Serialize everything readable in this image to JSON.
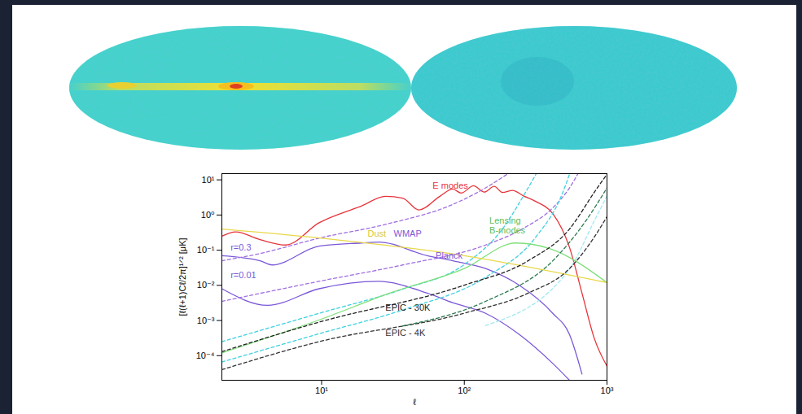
{
  "chart_data": {
    "type": "line",
    "log": true,
    "grid": false,
    "x_label": "ℓ",
    "y_label": "[ℓ(ℓ+1)Cℓ/2π]¹ᐟ² [μK]",
    "xlim": [
      2,
      1000
    ],
    "ylim": [
      2e-05,
      15
    ],
    "xticks": [
      {
        "value": 10,
        "label": "10¹"
      },
      {
        "value": 100,
        "label": "10²"
      },
      {
        "value": 1000,
        "label": "10³"
      }
    ],
    "yticks": [
      {
        "value": 10,
        "label": "10¹"
      },
      {
        "value": 1,
        "label": "10⁰"
      },
      {
        "value": 0.1,
        "label": "10⁻¹"
      },
      {
        "value": 0.01,
        "label": "10⁻²"
      },
      {
        "value": 0.001,
        "label": "10⁻³"
      },
      {
        "value": 0.0001,
        "label": "10⁻⁴"
      }
    ],
    "series": [
      {
        "color": "#e8333a",
        "line_style": "solid",
        "x": [
          2,
          2.5,
          3.7,
          5.6,
          9.6,
          19,
          28,
          37,
          48,
          68,
          83,
          95,
          116,
          138,
          162,
          185,
          218,
          260,
          318,
          417,
          546,
          668,
          817,
          1000
        ],
        "values": [
          0.25,
          0.33,
          0.2,
          0.14,
          0.6,
          1.8,
          3.4,
          3.0,
          1.4,
          3.5,
          5.5,
          4.2,
          6.8,
          4.5,
          6.5,
          4.4,
          5.0,
          3.5,
          2.4,
          1.1,
          0.12,
          0.006,
          0.0003,
          5e-05
        ]
      },
      {
        "color": "#7b58d8",
        "line_style": "solid",
        "x": [
          2,
          3.7,
          4.5,
          9.6,
          19,
          25,
          55,
          83,
          141,
          243,
          417,
          546,
          668
        ],
        "values": [
          0.07,
          0.05,
          0.038,
          0.13,
          0.16,
          0.17,
          0.07,
          0.05,
          0.03,
          0.01,
          0.0016,
          0.0004,
          3e-05
        ]
      },
      {
        "color": "#7b58d8",
        "line_style": "solid",
        "x": [
          2,
          4.2,
          9.6,
          25,
          55,
          83,
          141,
          243,
          417,
          546
        ],
        "values": [
          0.008,
          0.0027,
          0.008,
          0.013,
          0.006,
          0.0032,
          0.0016,
          0.0004,
          6e-05,
          2e-05
        ]
      },
      {
        "color": "#a070e0",
        "line_style": "dashed",
        "x": [
          2,
          3.7,
          9.6,
          28,
          83,
          141,
          200
        ],
        "values": [
          0.05,
          0.08,
          0.22,
          0.54,
          2,
          5.9,
          14.5
        ]
      },
      {
        "color": "#a070e0",
        "line_style": "dashed",
        "x": [
          2,
          9.6,
          37,
          141,
          260,
          417,
          546,
          623
        ],
        "values": [
          0.0035,
          0.013,
          0.038,
          0.14,
          0.42,
          1.6,
          5.9,
          14.5
        ]
      },
      {
        "color": "#3fd0e0",
        "line_style": "dashed",
        "x": [
          2,
          9.6,
          37,
          99,
          185,
          280,
          318
        ],
        "values": [
          0.00025,
          0.0016,
          0.0078,
          0.038,
          0.4,
          5.9,
          14.5
        ]
      },
      {
        "color": "#3fd0e0",
        "line_style": "dashed",
        "x": [
          2,
          9.6,
          37,
          141,
          318,
          479,
          546
        ],
        "values": [
          6.6e-05,
          0.00042,
          0.002,
          0.017,
          0.24,
          3.5,
          14.5
        ]
      },
      {
        "color": "#a0e8f0",
        "line_style": "dashed",
        "x": [
          141,
          546,
          817,
          1000
        ],
        "values": [
          0.00072,
          0.029,
          0.7,
          3.5
        ]
      },
      {
        "color": "#7ee07a",
        "line_style": "solid",
        "x": [
          2,
          10,
          30,
          100,
          230,
          400,
          1000
        ],
        "values": [
          0.00012,
          0.0011,
          0.006,
          0.03,
          0.16,
          0.11,
          0.012
        ]
      },
      {
        "color": "#e8d84a",
        "line_style": "solid",
        "x": [
          2,
          10,
          100,
          1000
        ],
        "values": [
          0.4,
          0.22,
          0.07,
          0.012
        ]
      },
      {
        "color": "#222222",
        "line_style": "dashed",
        "x": [
          2,
          9.6,
          99,
          280,
          546,
          817,
          1000
        ],
        "values": [
          0.00013,
          0.0009,
          0.01,
          0.05,
          0.4,
          4.5,
          14.5
        ]
      },
      {
        "color": "#333333",
        "line_style": "dashed",
        "x": [
          2,
          9.6,
          99,
          280,
          546,
          817,
          1000
        ],
        "values": [
          4e-05,
          0.00025,
          0.0016,
          0.006,
          0.03,
          0.24,
          0.9
        ]
      },
      {
        "color": "#2e7a50",
        "line_style": "dashed",
        "x": [
          37,
          141,
          417,
          714,
          1000
        ],
        "values": [
          0.0007,
          0.0035,
          0.05,
          0.7,
          5.9
        ]
      }
    ],
    "annotations": [
      {
        "text": "E modes",
        "x": 60,
        "y": 7,
        "color": "#e8333a"
      },
      {
        "text": "WMAP",
        "x": 32,
        "y": 0.3,
        "color": "#7b58d8"
      },
      {
        "text": "Planck",
        "x": 63,
        "y": 0.07,
        "color": "#7b58d8"
      },
      {
        "text": "Lensing\nB-modes",
        "x": 150,
        "y": 0.5,
        "color": "#5cc058"
      },
      {
        "text": "r=0.3",
        "x": 2.3,
        "y": 0.12,
        "color": "#7b58d8"
      },
      {
        "text": "r=0.01",
        "x": 2.3,
        "y": 0.02,
        "color": "#7b58d8"
      },
      {
        "text": "Dust",
        "x": 21,
        "y": 0.3,
        "color": "#d8c838"
      },
      {
        "text": "EPIC - 30K",
        "x": 28,
        "y": 0.0023,
        "color": "#222222"
      },
      {
        "text": "EPIC - 4K",
        "x": 28,
        "y": 0.00046,
        "color": "#333333"
      }
    ]
  }
}
